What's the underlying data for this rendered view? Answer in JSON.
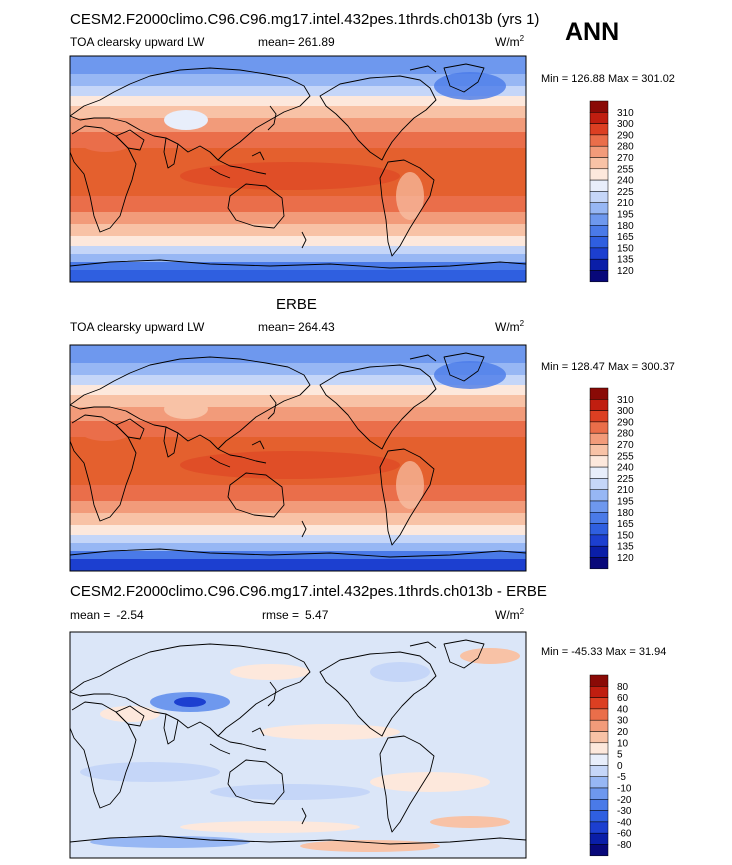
{
  "season_label": "ANN",
  "chart_data": [
    {
      "type": "heatmap",
      "title": "CESM2.F2000climo.C96.C96.mg17.intel.432pes.1thrds.ch013b (yrs 1)",
      "variable": "TOA clearsky upward LW",
      "stat_label": "mean=",
      "stat_value": "261.89",
      "units_base": "W/m",
      "units_exp": "2",
      "minmax": "Min = 126.88 Max = 301.02",
      "colorbar_levels": [
        "120",
        "135",
        "150",
        "165",
        "180",
        "195",
        "210",
        "225",
        "240",
        "255",
        "270",
        "280",
        "290",
        "300",
        "310"
      ],
      "colorbar_colors": [
        "#08087a",
        "#0a1ea8",
        "#1c3fd0",
        "#2f5fe0",
        "#4a7ae8",
        "#6e98ee",
        "#97b7f4",
        "#c5d6f8",
        "#e8eefb",
        "#fde8dc",
        "#f8c2a6",
        "#f29b7a",
        "#ea6e4a",
        "#dc3f22",
        "#c01e10",
        "#8a0a06"
      ],
      "dataset": "model"
    },
    {
      "type": "heatmap",
      "title": "ERBE",
      "variable": "TOA clearsky upward LW",
      "stat_label": "mean=",
      "stat_value": "264.43",
      "units_base": "W/m",
      "units_exp": "2",
      "minmax": "Min = 128.47 Max = 300.37",
      "colorbar_levels": [
        "120",
        "135",
        "150",
        "165",
        "180",
        "195",
        "210",
        "225",
        "240",
        "255",
        "270",
        "280",
        "290",
        "300",
        "310"
      ],
      "colorbar_colors": [
        "#08087a",
        "#0a1ea8",
        "#1c3fd0",
        "#2f5fe0",
        "#4a7ae8",
        "#6e98ee",
        "#97b7f4",
        "#c5d6f8",
        "#e8eefb",
        "#fde8dc",
        "#f8c2a6",
        "#f29b7a",
        "#ea6e4a",
        "#dc3f22",
        "#c01e10",
        "#8a0a06"
      ],
      "dataset": "obs"
    },
    {
      "type": "heatmap",
      "title": "CESM2.F2000climo.C96.C96.mg17.intel.432pes.1thrds.ch013b - ERBE",
      "stat_label": "mean =",
      "stat_value": "-2.54",
      "rmse_label": "rmse =",
      "rmse_value": "5.47",
      "units_base": "W/m",
      "units_exp": "2",
      "minmax": "Min = -45.33 Max =  31.94",
      "colorbar_levels": [
        "-80",
        "-60",
        "-40",
        "-30",
        "-20",
        "-10",
        "-5",
        "0",
        "5",
        "10",
        "20",
        "30",
        "40",
        "60",
        "80"
      ],
      "colorbar_colors": [
        "#08087a",
        "#0a1ea8",
        "#1c3fd0",
        "#2f5fe0",
        "#4a7ae8",
        "#6e98ee",
        "#97b7f4",
        "#c5d6f8",
        "#e8eefb",
        "#fde8dc",
        "#f8c2a6",
        "#f29b7a",
        "#ea6e4a",
        "#dc3f22",
        "#c01e10",
        "#8a0a06"
      ],
      "dataset": "diff"
    }
  ]
}
